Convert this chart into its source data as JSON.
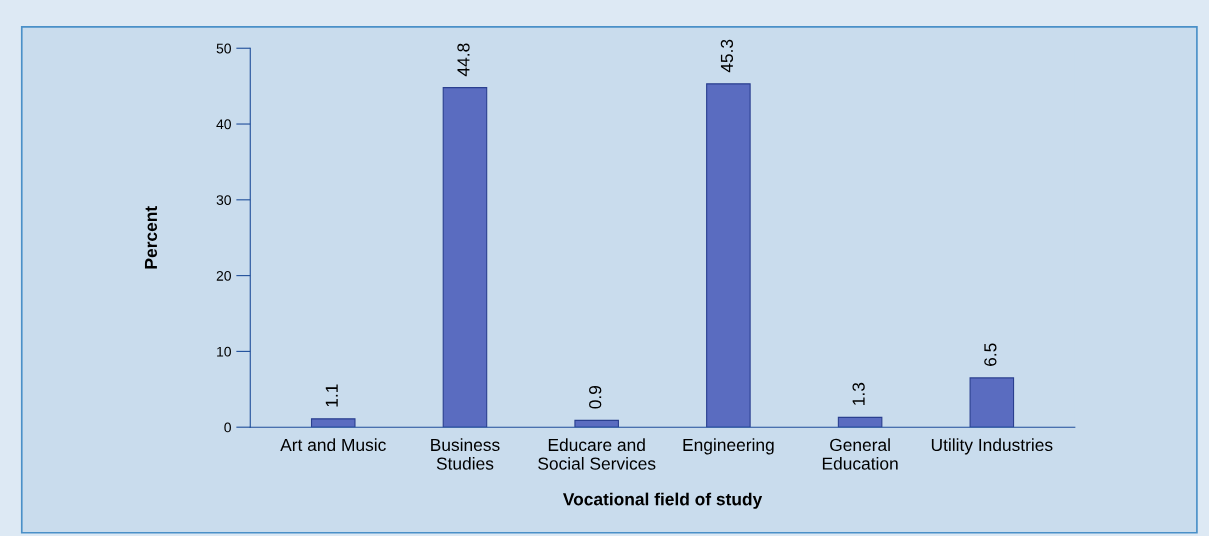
{
  "chart_data": {
    "type": "bar",
    "xlabel": "Vocational field of study",
    "ylabel": "Percent",
    "categories": [
      "Art and Music",
      "Business\nStudies",
      "Educare and\nSocial Services",
      "Engineering",
      "General\nEducation",
      "Utility Industries"
    ],
    "values": [
      1.1,
      44.8,
      0.9,
      45.3,
      1.3,
      6.5
    ],
    "color": "#5a6cc0",
    "ylim": [
      0,
      50
    ],
    "yticks": [
      0,
      10,
      20,
      30,
      40,
      50
    ],
    "grid": false,
    "data_labels": true
  }
}
